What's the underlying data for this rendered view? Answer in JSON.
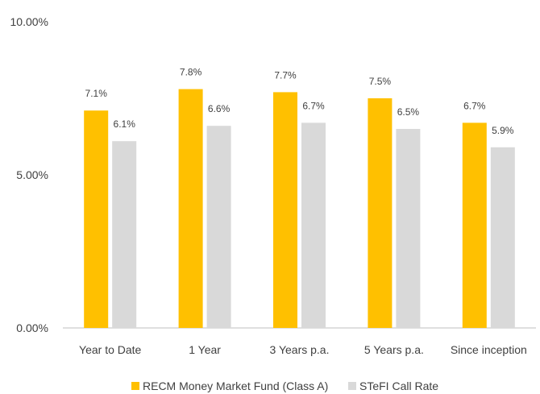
{
  "chart_data": {
    "type": "bar",
    "title": "",
    "xlabel": "",
    "ylabel": "",
    "categories": [
      "Year to Date",
      "1 Year",
      "3 Years p.a.",
      "5 Years p.a.",
      "Since inception"
    ],
    "series": [
      {
        "name": "RECM Money Market Fund (Class A)",
        "color": "#FFC000",
        "values": [
          7.1,
          7.8,
          7.7,
          7.5,
          6.7
        ],
        "labels": [
          "7.1%",
          "7.8%",
          "7.7%",
          "7.5%",
          "6.7%"
        ]
      },
      {
        "name": "STeFI Call Rate",
        "color": "#D9D9D9",
        "values": [
          6.1,
          6.6,
          6.7,
          6.5,
          5.9
        ],
        "labels": [
          "6.1%",
          "6.6%",
          "6.7%",
          "6.5%",
          "5.9%"
        ]
      }
    ],
    "ylim": [
      0,
      10
    ],
    "yticks": [
      {
        "value": 0,
        "label": "0.00%"
      },
      {
        "value": 5,
        "label": "5.00%"
      },
      {
        "value": 10,
        "label": "10.00%"
      }
    ],
    "grid": false,
    "legend_position": "bottom"
  }
}
